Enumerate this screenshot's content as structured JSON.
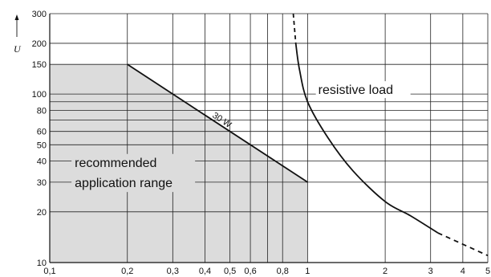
{
  "chart_data": {
    "type": "line",
    "title": "",
    "xlabel": "",
    "ylabel": "U",
    "x_scale": "log",
    "y_scale": "log",
    "xlim": [
      0.1,
      5
    ],
    "ylim": [
      10,
      300
    ],
    "grid": true,
    "x_ticks": [
      {
        "value": 0.1,
        "label": "0,1"
      },
      {
        "value": 0.2,
        "label": "0,2"
      },
      {
        "value": 0.3,
        "label": "0,3"
      },
      {
        "value": 0.4,
        "label": "0,4"
      },
      {
        "value": 0.5,
        "label": "0,5"
      },
      {
        "value": 0.6,
        "label": "0,6"
      },
      {
        "value": 0.8,
        "label": "0,8"
      },
      {
        "value": 1,
        "label": "1"
      },
      {
        "value": 2,
        "label": "2"
      },
      {
        "value": 3,
        "label": "3"
      },
      {
        "value": 4,
        "label": "4"
      },
      {
        "value": 5,
        "label": "5"
      }
    ],
    "x_grid_extra": [
      0.7
    ],
    "y_ticks": [
      {
        "value": 10,
        "label": "10"
      },
      {
        "value": 20,
        "label": "20"
      },
      {
        "value": 30,
        "label": "30"
      },
      {
        "value": 40,
        "label": "40"
      },
      {
        "value": 50,
        "label": "50"
      },
      {
        "value": 60,
        "label": "60"
      },
      {
        "value": 80,
        "label": "80"
      },
      {
        "value": 100,
        "label": "100"
      },
      {
        "value": 150,
        "label": "150"
      },
      {
        "value": 200,
        "label": "200"
      },
      {
        "value": 300,
        "label": "300"
      }
    ],
    "y_grid_extra": [
      70,
      90
    ],
    "recommended_region": {
      "label_lines": [
        "recommended",
        "application range"
      ],
      "points": [
        [
          0.1,
          10
        ],
        [
          0.1,
          150
        ],
        [
          0.2,
          150
        ],
        [
          1,
          30
        ],
        [
          1,
          10
        ]
      ]
    },
    "power_line": {
      "label": "30 W",
      "points": [
        [
          0.2,
          150
        ],
        [
          1,
          30
        ]
      ]
    },
    "resistive_load": {
      "label": "resistive load",
      "solid_points": [
        [
          0.9,
          200
        ],
        [
          0.93,
          140
        ],
        [
          1,
          90
        ],
        [
          1.2,
          55
        ],
        [
          1.5,
          35
        ],
        [
          2,
          23
        ],
        [
          2.5,
          19
        ],
        [
          3.2,
          15
        ]
      ],
      "dashed_start": [
        [
          0.88,
          300
        ],
        [
          0.9,
          200
        ]
      ],
      "dashed_end": [
        [
          3.2,
          15
        ],
        [
          5,
          11
        ]
      ]
    }
  }
}
